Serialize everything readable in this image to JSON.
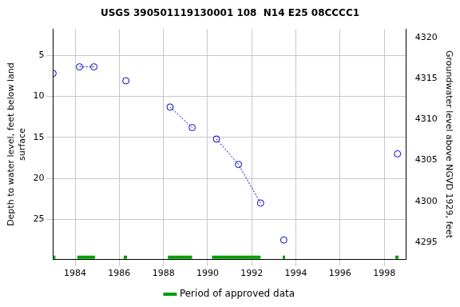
{
  "chart_data": {
    "type": "scatter",
    "title": "USGS 390501119130001 108  N14 E25 08CCCC1",
    "y_label": [
      "Depth to water level, feet below land",
      "surface"
    ],
    "y2_label": "Groundwater level above NGVD 1929, feet",
    "x": [
      1983.0,
      1984.2,
      1984.85,
      1986.3,
      1988.3,
      1989.3,
      1990.4,
      1991.4,
      1992.4,
      1993.45,
      1998.6
    ],
    "series": [
      {
        "color": "#0000cc",
        "marker": "circle",
        "line_style": "dotted",
        "values": [
          7.2,
          6.4,
          6.4,
          8.1,
          11.3,
          13.8,
          15.2,
          18.3,
          23.0,
          27.5,
          17.0
        ]
      }
    ],
    "approved_periods": {
      "name": "Period of approved data",
      "color": "#00a000",
      "ranges": [
        [
          1983.0,
          1983.1
        ],
        [
          1984.1,
          1984.9
        ],
        [
          1986.2,
          1986.35
        ],
        [
          1988.2,
          1989.3
        ],
        [
          1990.2,
          1992.4
        ],
        [
          1993.4,
          1993.5
        ],
        [
          1998.5,
          1998.65
        ]
      ]
    },
    "xlim": [
      1983,
      1999
    ],
    "xticks": [
      1984,
      1986,
      1988,
      1990,
      1992,
      1994,
      1996,
      1998
    ],
    "ylim": [
      1.8,
      29.9
    ],
    "yticks": [
      5,
      10,
      15,
      20,
      25
    ],
    "y2lim": [
      4292.9,
      4321.0
    ],
    "y2ticks": [
      4295,
      4300,
      4305,
      4310,
      4315,
      4320
    ],
    "grid": true,
    "legend": "bottom"
  }
}
